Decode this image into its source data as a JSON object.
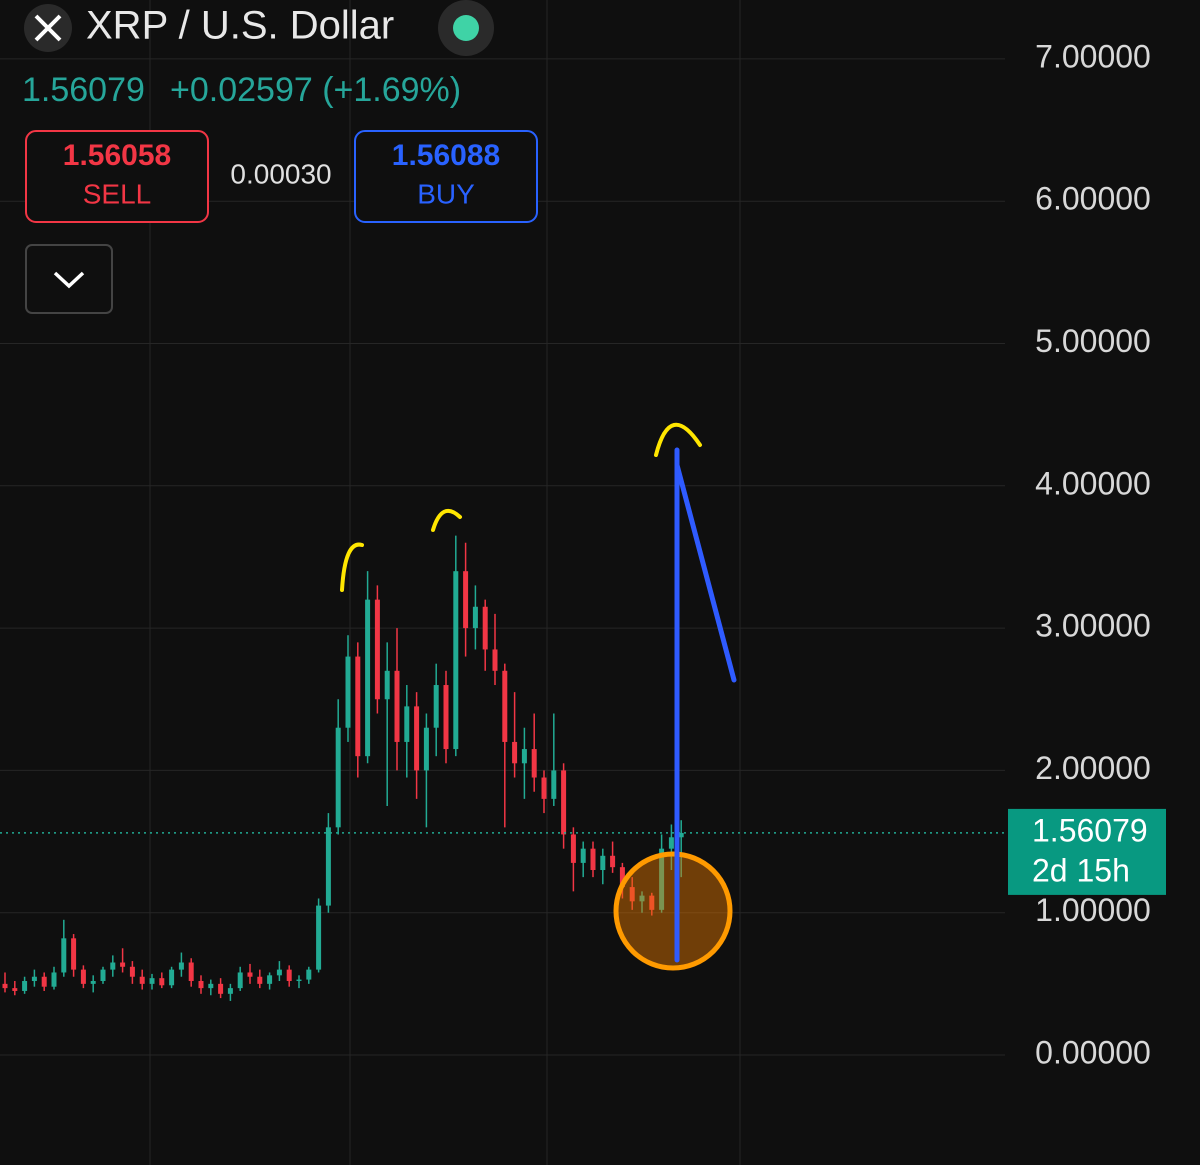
{
  "header": {
    "symbol": "XRP / U.S. Dollar",
    "price": 1.56079,
    "change": "+0.02597 (+1.69%)",
    "sell_price": 1.56058,
    "sell_label": "SELL",
    "spread": "0.00030",
    "buy_price": 1.56088,
    "buy_label": "BUY"
  },
  "chart_data": {
    "type": "candlestick",
    "up_color": "#22ab94",
    "down_color": "#f23645",
    "open": [
      0.5,
      0.47,
      0.45,
      0.52,
      0.55,
      0.48,
      0.58,
      0.82,
      0.6,
      0.5,
      0.52,
      0.6,
      0.65,
      0.62,
      0.55,
      0.5,
      0.54,
      0.49,
      0.6,
      0.65,
      0.52,
      0.47,
      0.5,
      0.43,
      0.47,
      0.58,
      0.55,
      0.5,
      0.56,
      0.6,
      0.52,
      0.53,
      0.6,
      1.05,
      1.6,
      2.3,
      2.8,
      2.1,
      3.2,
      2.5,
      2.7,
      2.2,
      2.45,
      2.0,
      2.3,
      2.6,
      2.15,
      3.4,
      3.0,
      3.15,
      2.85,
      2.7,
      2.2,
      2.05,
      2.15,
      1.95,
      1.8,
      2.0,
      1.55,
      1.35,
      1.45,
      1.3,
      1.4,
      1.32,
      1.18,
      1.08,
      1.12,
      1.02,
      1.45,
      1.53
    ],
    "high": [
      0.58,
      0.52,
      0.55,
      0.6,
      0.58,
      0.62,
      0.95,
      0.85,
      0.63,
      0.56,
      0.62,
      0.7,
      0.75,
      0.66,
      0.6,
      0.57,
      0.58,
      0.62,
      0.72,
      0.68,
      0.56,
      0.53,
      0.54,
      0.5,
      0.62,
      0.64,
      0.6,
      0.58,
      0.66,
      0.63,
      0.56,
      0.62,
      1.1,
      1.7,
      2.5,
      2.95,
      2.9,
      3.4,
      3.3,
      2.9,
      3.0,
      2.6,
      2.55,
      2.4,
      2.75,
      2.7,
      3.65,
      3.6,
      3.3,
      3.2,
      3.1,
      2.75,
      2.55,
      2.3,
      2.4,
      2.0,
      2.4,
      2.05,
      1.6,
      1.5,
      1.5,
      1.45,
      1.5,
      1.35,
      1.25,
      1.15,
      1.14,
      1.55,
      1.62,
      1.65
    ],
    "low": [
      0.44,
      0.42,
      0.43,
      0.48,
      0.45,
      0.46,
      0.55,
      0.55,
      0.47,
      0.44,
      0.5,
      0.55,
      0.58,
      0.5,
      0.46,
      0.46,
      0.47,
      0.47,
      0.55,
      0.48,
      0.43,
      0.42,
      0.4,
      0.38,
      0.45,
      0.5,
      0.47,
      0.46,
      0.52,
      0.48,
      0.47,
      0.5,
      0.58,
      1.0,
      1.55,
      2.2,
      1.95,
      2.05,
      2.4,
      1.75,
      2.0,
      1.95,
      1.8,
      1.6,
      2.1,
      2.05,
      2.1,
      2.8,
      2.85,
      2.7,
      2.6,
      1.6,
      1.95,
      1.8,
      1.85,
      1.7,
      1.75,
      1.45,
      1.15,
      1.25,
      1.25,
      1.2,
      1.28,
      1.1,
      1.02,
      1.0,
      0.98,
      1.0,
      1.3,
      1.25
    ],
    "close": [
      0.47,
      0.45,
      0.52,
      0.55,
      0.48,
      0.58,
      0.82,
      0.6,
      0.5,
      0.52,
      0.6,
      0.65,
      0.62,
      0.55,
      0.5,
      0.54,
      0.49,
      0.6,
      0.65,
      0.52,
      0.47,
      0.5,
      0.43,
      0.47,
      0.58,
      0.55,
      0.5,
      0.56,
      0.6,
      0.52,
      0.53,
      0.6,
      1.05,
      1.6,
      2.3,
      2.8,
      2.1,
      3.2,
      2.5,
      2.7,
      2.2,
      2.45,
      2.0,
      2.3,
      2.6,
      2.15,
      3.4,
      3.0,
      3.15,
      2.85,
      2.7,
      2.2,
      2.05,
      2.15,
      1.95,
      1.8,
      2.0,
      1.55,
      1.35,
      1.45,
      1.3,
      1.4,
      1.32,
      1.18,
      1.08,
      1.12,
      1.02,
      1.45,
      1.53,
      1.56079
    ],
    "ylim": [
      -0.773,
      7.414
    ],
    "yticks": [
      {
        "value": 0,
        "label": "0.00000"
      },
      {
        "value": 1,
        "label": "1.00000"
      },
      {
        "value": 2,
        "label": "2.00000"
      },
      {
        "value": 3,
        "label": "3.00000"
      },
      {
        "value": 4,
        "label": "4.00000"
      },
      {
        "value": 5,
        "label": "5.00000"
      },
      {
        "value": 6,
        "label": "6.00000"
      },
      {
        "value": 7,
        "label": "7.00000"
      }
    ],
    "grid": true,
    "last_price": 1.56079,
    "countdown": "2d 15h"
  }
}
